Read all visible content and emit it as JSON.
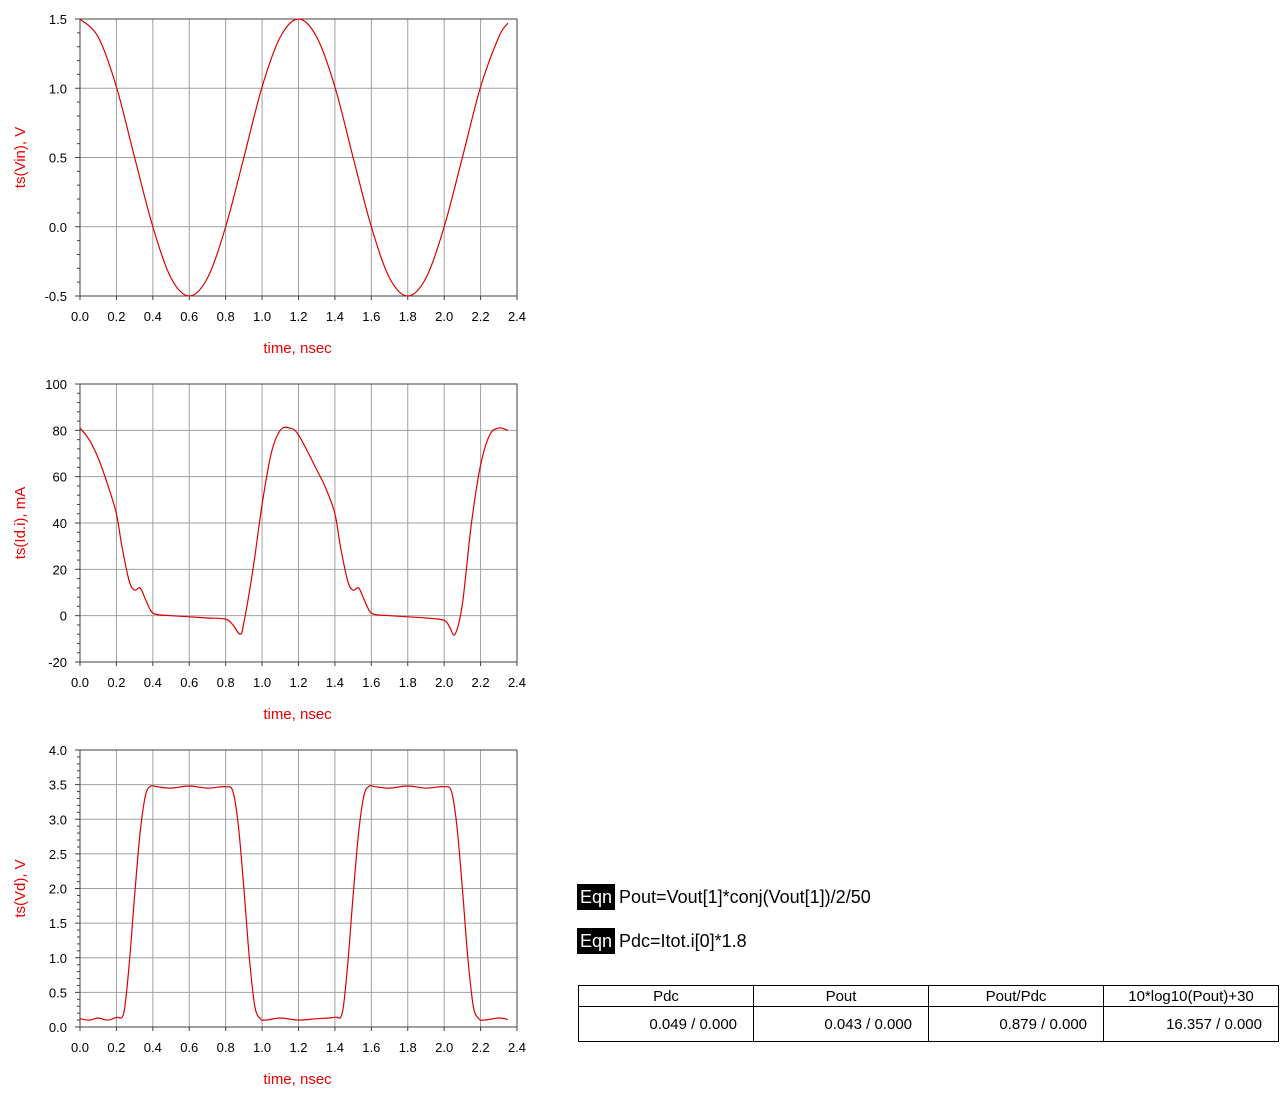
{
  "chart_data": [
    {
      "type": "line",
      "xlabel": "time, nsec",
      "ylabel": "ts(Vin), V",
      "xlim": [
        0,
        2.4
      ],
      "ylim": [
        -0.5,
        1.5
      ],
      "xticks": [
        "0.0",
        "0.2",
        "0.4",
        "0.6",
        "0.8",
        "1.0",
        "1.2",
        "1.4",
        "1.6",
        "1.8",
        "2.0",
        "2.2",
        "2.4"
      ],
      "yticks": [
        "-0.5",
        "0.0",
        "0.5",
        "1.0",
        "1.5"
      ],
      "yticks_values": [
        -0.5,
        0.0,
        0.5,
        1.0,
        1.5
      ],
      "grid": true,
      "series": [
        {
          "x": [
            0,
            0.1,
            0.2,
            0.3,
            0.4,
            0.5,
            0.6,
            0.7,
            0.8,
            0.9,
            1.0,
            1.1,
            1.2,
            1.3,
            1.4,
            1.5,
            1.6,
            1.7,
            1.8,
            1.9,
            2.0,
            2.1,
            2.2,
            2.3,
            2.35
          ],
          "y": [
            1.5,
            1.37,
            1.01,
            0.5,
            0.0,
            -0.37,
            -0.5,
            -0.37,
            0.0,
            0.5,
            1.01,
            1.37,
            1.5,
            1.37,
            1.01,
            0.5,
            0.0,
            -0.37,
            -0.5,
            -0.37,
            0.0,
            0.5,
            1.01,
            1.37,
            1.47
          ]
        }
      ]
    },
    {
      "type": "line",
      "xlabel": "time, nsec",
      "ylabel": "ts(Id.i), mA",
      "xlim": [
        0,
        2.4
      ],
      "ylim": [
        -20,
        100
      ],
      "xticks": [
        "0.0",
        "0.2",
        "0.4",
        "0.6",
        "0.8",
        "1.0",
        "1.2",
        "1.4",
        "1.6",
        "1.8",
        "2.0",
        "2.2",
        "2.4"
      ],
      "yticks": [
        "-20",
        "0",
        "20",
        "40",
        "60",
        "80",
        "100"
      ],
      "yticks_values": [
        -20,
        0,
        20,
        40,
        60,
        80,
        100
      ],
      "grid": true,
      "series": [
        {
          "x": [
            0,
            0.05,
            0.1,
            0.15,
            0.2,
            0.23,
            0.27,
            0.3,
            0.33,
            0.36,
            0.39,
            0.42,
            0.5,
            0.6,
            0.7,
            0.8,
            0.84,
            0.88,
            0.9,
            0.95,
            1.0,
            1.05,
            1.1,
            1.15,
            1.2,
            1.3,
            1.35,
            1.4,
            1.43,
            1.47,
            1.5,
            1.53,
            1.56,
            1.59,
            1.62,
            1.7,
            1.8,
            1.9,
            2.0,
            2.03,
            2.06,
            2.1,
            2.15,
            2.2,
            2.25,
            2.3,
            2.35
          ],
          "y": [
            81,
            76,
            68,
            57,
            44,
            30,
            15,
            11,
            12,
            7,
            2,
            0.5,
            0,
            -0.5,
            -1,
            -1.5,
            -4,
            -8,
            -3,
            20,
            48,
            70,
            80,
            81,
            78,
            63,
            55,
            44,
            30,
            15,
            11,
            12,
            7,
            2,
            0.5,
            0,
            -0.5,
            -1,
            -2,
            -5,
            -8,
            5,
            40,
            65,
            78,
            81,
            80
          ]
        }
      ]
    },
    {
      "type": "line",
      "xlabel": "time, nsec",
      "ylabel": "ts(Vd), V",
      "xlim": [
        0,
        2.4
      ],
      "ylim": [
        0,
        4
      ],
      "xticks": [
        "0.0",
        "0.2",
        "0.4",
        "0.6",
        "0.8",
        "1.0",
        "1.2",
        "1.4",
        "1.6",
        "1.8",
        "2.0",
        "2.2",
        "2.4"
      ],
      "yticks": [
        "0.0",
        "0.5",
        "1.0",
        "1.5",
        "2.0",
        "2.5",
        "3.0",
        "3.5",
        "4.0"
      ],
      "yticks_values": [
        0,
        0.5,
        1.0,
        1.5,
        2.0,
        2.5,
        3.0,
        3.5,
        4.0
      ],
      "grid": true,
      "series": [
        {
          "x": [
            0,
            0.05,
            0.1,
            0.15,
            0.2,
            0.24,
            0.27,
            0.3,
            0.33,
            0.36,
            0.39,
            0.42,
            0.5,
            0.6,
            0.7,
            0.8,
            0.84,
            0.87,
            0.9,
            0.93,
            0.96,
            0.99,
            1.02,
            1.1,
            1.2,
            1.3,
            1.4,
            1.44,
            1.47,
            1.5,
            1.53,
            1.56,
            1.59,
            1.62,
            1.7,
            1.8,
            1.9,
            2.0,
            2.04,
            2.07,
            2.1,
            2.13,
            2.16,
            2.19,
            2.22,
            2.3,
            2.35
          ],
          "y": [
            0.12,
            0.1,
            0.13,
            0.1,
            0.14,
            0.2,
            0.9,
            1.9,
            2.8,
            3.35,
            3.48,
            3.47,
            3.45,
            3.48,
            3.45,
            3.47,
            3.4,
            2.9,
            2.0,
            1.0,
            0.3,
            0.12,
            0.1,
            0.13,
            0.1,
            0.12,
            0.14,
            0.2,
            0.9,
            1.9,
            2.8,
            3.35,
            3.48,
            3.47,
            3.45,
            3.48,
            3.45,
            3.47,
            3.4,
            2.9,
            2.0,
            1.0,
            0.3,
            0.12,
            0.1,
            0.13,
            0.11
          ]
        }
      ]
    }
  ],
  "equations": [
    {
      "tag": "Eqn",
      "text": "Pout=Vout[1]*conj(Vout[1])/2/50"
    },
    {
      "tag": "Eqn",
      "text": "Pdc=Itot.i[0]*1.8"
    }
  ],
  "results_table": {
    "headers": [
      "Pdc",
      "Pout",
      "Pout/Pdc",
      "10*log10(Pout)+30"
    ],
    "values": [
      "0.049 / 0.000",
      "0.043 / 0.000",
      "0.879 / 0.000",
      "16.357 / 0.000"
    ]
  },
  "colors": {
    "trace": "#dd0000",
    "grid": "#a0a0a0",
    "frame": "#404040",
    "label": "#ee0000"
  }
}
